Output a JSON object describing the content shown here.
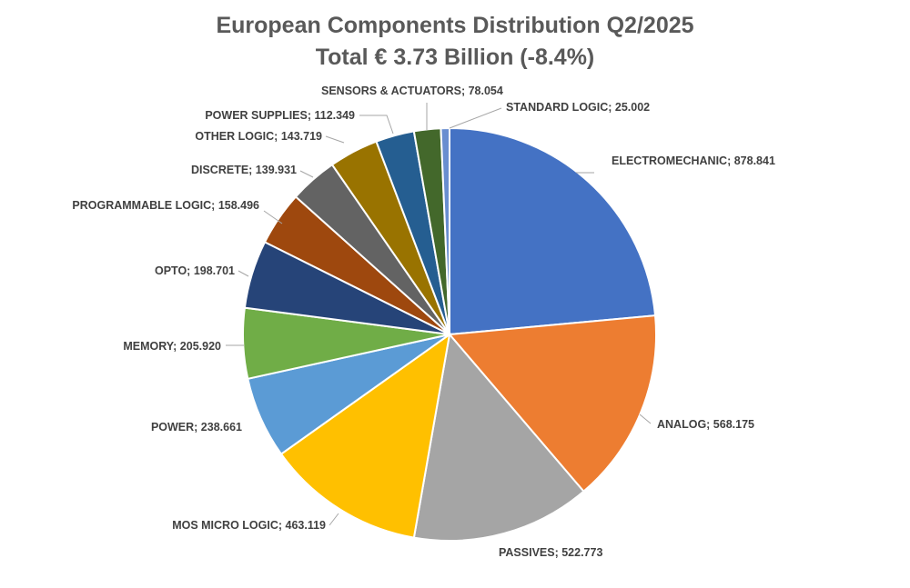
{
  "chart_data": {
    "type": "pie",
    "title": "European Components Distribution Q2/2025",
    "subtitle": "Total € 3.73 Billion (-8.4%)",
    "label_separator": "; ",
    "start_angle_deg": 0,
    "direction": "clockwise",
    "categories": [
      "ELECTROMECHANIC",
      "ANALOG",
      "PASSIVES",
      "MOS MICRO LOGIC",
      "POWER",
      "MEMORY",
      "OPTO",
      "PROGRAMMABLE LOGIC",
      "DISCRETE",
      "OTHER LOGIC",
      "POWER SUPPLIES",
      "SENSORS & ACTUATORS",
      "STANDARD LOGIC"
    ],
    "values": [
      878.841,
      568.175,
      522.773,
      463.119,
      238.661,
      205.92,
      198.701,
      158.496,
      139.931,
      143.719,
      112.349,
      78.054,
      25.002
    ],
    "value_labels": [
      "878.841",
      "568.175",
      "522.773",
      "463.119",
      "238.661",
      "205.920",
      "198.701",
      "158.496",
      "139.931",
      "143.719",
      "112.349",
      "78.054",
      "25.002"
    ],
    "colors": [
      "#4472c4",
      "#ed7d31",
      "#a5a5a5",
      "#ffc000",
      "#5b9bd5",
      "#70ad47",
      "#264478",
      "#9e480e",
      "#636363",
      "#997300",
      "#255e91",
      "#43682b",
      "#698ed0"
    ],
    "legend": "none"
  }
}
